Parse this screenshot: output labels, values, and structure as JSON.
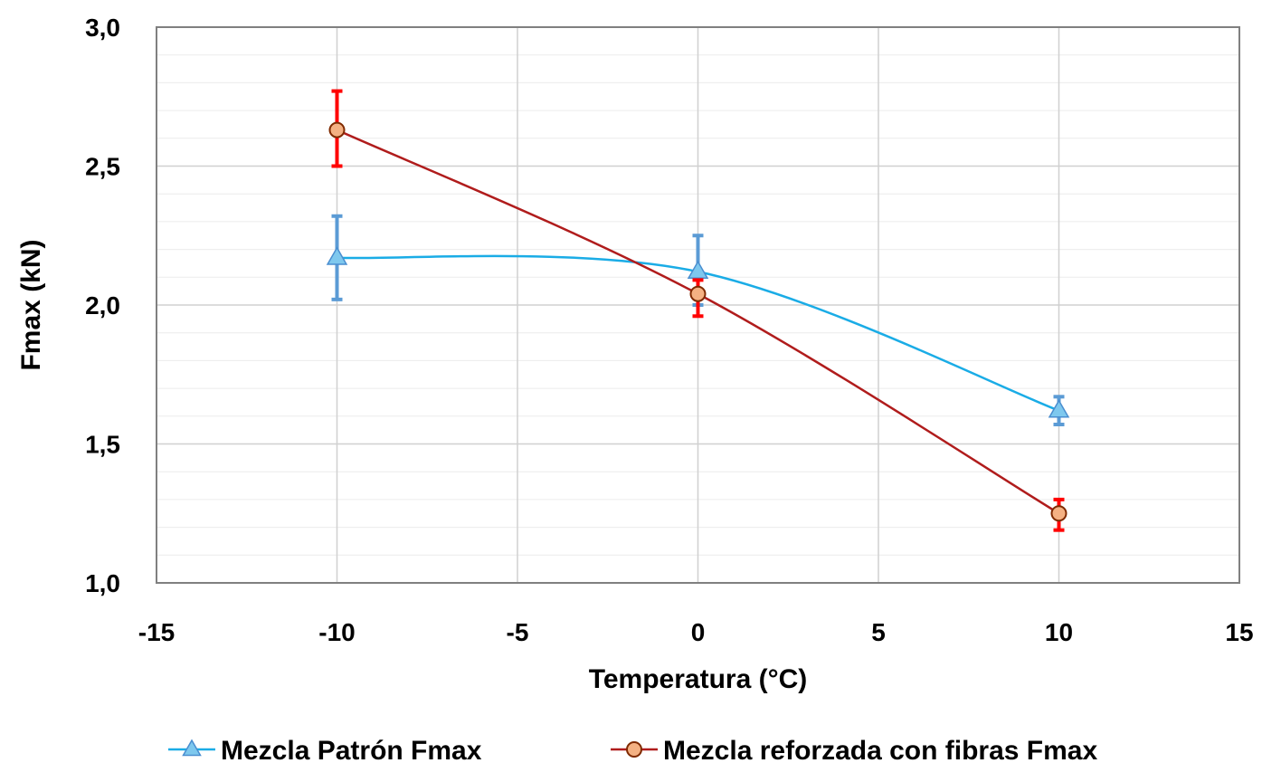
{
  "chart_data": {
    "type": "line",
    "title": "",
    "xlabel": "Temperatura (°C)",
    "ylabel": "Fmax (kN)",
    "xlim": [
      -15,
      15
    ],
    "ylim": [
      1.0,
      3.0
    ],
    "xticks": [
      -15,
      -10,
      -5,
      0,
      5,
      10,
      15
    ],
    "xtick_labels": [
      "-15",
      "-10",
      "-5",
      "0",
      "5",
      "10",
      "15"
    ],
    "yticks": [
      1.0,
      1.5,
      2.0,
      2.5,
      3.0
    ],
    "ytick_labels": [
      "1,0",
      "1,5",
      "2,0",
      "2,5",
      "3,0"
    ],
    "grid": true,
    "smooth": true,
    "legend_position": "bottom",
    "series": [
      {
        "name": "Mezcla Patrón Fmax",
        "marker": "triangle",
        "line_color": "#1AACE6",
        "marker_fill": "#7EC8EE",
        "marker_stroke": "#4A8ED0",
        "error_color": "#5B9BD5",
        "x": [
          -10,
          0,
          10
        ],
        "y": [
          2.17,
          2.12,
          1.62
        ],
        "err_low": [
          2.02,
          2.0,
          1.57
        ],
        "err_high": [
          2.32,
          2.25,
          1.67
        ]
      },
      {
        "name": "Mezcla reforzada con fibras Fmax",
        "marker": "circle",
        "line_color": "#B01C1C",
        "marker_fill": "#F4B183",
        "marker_stroke": "#7F2A00",
        "error_color": "#FF0000",
        "x": [
          -10,
          0,
          10
        ],
        "y": [
          2.63,
          2.04,
          1.25
        ],
        "err_low": [
          2.5,
          1.96,
          1.19
        ],
        "err_high": [
          2.77,
          2.09,
          1.3
        ]
      }
    ]
  }
}
